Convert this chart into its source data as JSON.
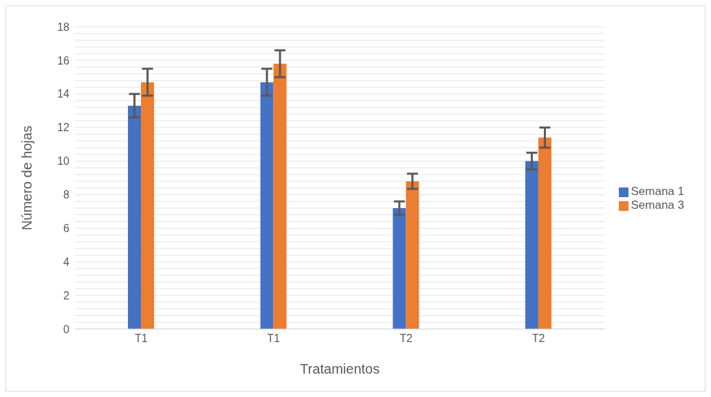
{
  "chart_data": {
    "type": "bar",
    "xlabel": "Tratamientos",
    "ylabel": "Número de hojas",
    "categories": [
      "T1",
      "T1",
      "T2",
      "T2"
    ],
    "series": [
      {
        "name": "Semana 1",
        "color": "#4472c4",
        "values": [
          13.3,
          14.7,
          7.2,
          10.0
        ],
        "errors": [
          0.7,
          0.8,
          0.4,
          0.5
        ]
      },
      {
        "name": "Semana 3",
        "color": "#ed7d31",
        "values": [
          14.7,
          15.8,
          8.8,
          11.4
        ],
        "errors": [
          0.8,
          0.8,
          0.45,
          0.6
        ]
      }
    ],
    "ylim": [
      0,
      18
    ],
    "yticks": [
      0,
      {
        "value": 0.4,
        "label": null
      },
      {
        "value": 0.8,
        "label": null
      },
      {
        "value": 1.2,
        "label": null
      },
      {
        "value": 1.6,
        "label": null
      },
      2,
      {
        "value": 2.4,
        "label": null
      },
      {
        "value": 2.8,
        "label": null
      },
      {
        "value": 3.2,
        "label": null
      },
      {
        "value": 3.6,
        "label": null
      },
      4,
      {
        "value": 4.4,
        "label": null
      },
      {
        "value": 4.8,
        "label": null
      },
      {
        "value": 5.2,
        "label": null
      },
      {
        "value": 5.6,
        "label": null
      },
      6,
      {
        "value": 6.4,
        "label": null
      },
      {
        "value": 6.8,
        "label": null
      },
      {
        "value": 7.2,
        "label": null
      },
      {
        "value": 7.6,
        "label": null
      },
      8,
      {
        "value": 8.4,
        "label": null
      },
      {
        "value": 8.8,
        "label": null
      },
      {
        "value": 9.2,
        "label": null
      },
      {
        "value": 9.6,
        "label": null
      },
      10,
      {
        "value": 10.4,
        "label": null
      },
      {
        "value": 10.8,
        "label": null
      },
      {
        "value": 11.2,
        "label": null
      },
      {
        "value": 11.6,
        "label": null
      },
      12,
      {
        "value": 12.4,
        "label": null
      },
      {
        "value": 12.8,
        "label": null
      },
      {
        "value": 13.2,
        "label": null
      },
      {
        "value": 13.6,
        "label": null
      },
      14,
      {
        "value": 14.4,
        "label": null
      },
      {
        "value": 14.8,
        "label": null
      },
      {
        "value": 15.2,
        "label": null
      },
      {
        "value": 15.6,
        "label": null
      },
      16,
      {
        "value": 16.4,
        "label": null
      },
      {
        "value": 16.8,
        "label": null
      },
      {
        "value": 17.2,
        "label": null
      },
      {
        "value": 17.6,
        "label": null
      },
      18
    ],
    "grid": "y",
    "legend": "right"
  }
}
